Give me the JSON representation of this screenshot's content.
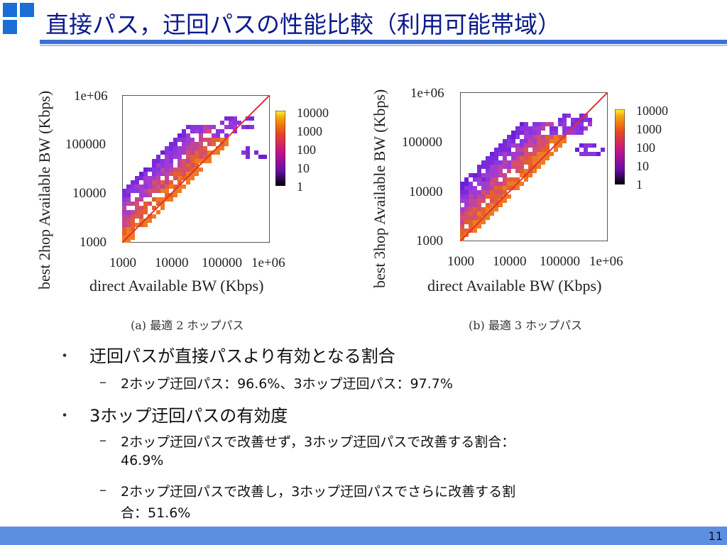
{
  "slide": {
    "title": "直接パス，迂回パスの性能比較（利用可能帯域）",
    "page_number": "11"
  },
  "plots": [
    {
      "ylabel": "best 2hop Available BW (Kbps)",
      "xlabel": "direct Available BW (Kbps)",
      "yticks": [
        "1e+06",
        "100000",
        "10000",
        "1000"
      ],
      "xticks": [
        "1000",
        "10000",
        "100000",
        "1e+06"
      ],
      "colorbar_ticks": [
        "10000",
        "1000",
        "100",
        "10",
        "1"
      ],
      "caption": "(a) 最適 2 ホップパス"
    },
    {
      "ylabel": "best 3hop Available BW (Kbps)",
      "xlabel": "direct Available BW (Kbps)",
      "yticks": [
        "1e+06",
        "100000",
        "10000",
        "1000"
      ],
      "xticks": [
        "1000",
        "10000",
        "100000",
        "1e+06"
      ],
      "colorbar_ticks": [
        "10000",
        "1000",
        "100",
        "10",
        "1"
      ],
      "caption": "(b) 最適 3 ホップパス"
    }
  ],
  "bullets": [
    {
      "text": "迂回パスが直接パスより有効となる割合",
      "sub": [
        "2ホップ迂回パス：96.6%、3ホップ迂回パス：97.7%"
      ]
    },
    {
      "text": "3ホップ迂回パスの有効度",
      "sub": [
        "2ホップ迂回パスで改善せず，3ホップ迂回パスで改善する割合：",
        "46.9%",
        "2ホップ迂回パスで改善し，3ホップ迂回パスでさらに改善する割",
        "合：51.6%"
      ]
    }
  ],
  "colors": {
    "title": "#0b1a8c",
    "accent": "#3d6fd8",
    "diagonal": "#e03030"
  }
}
